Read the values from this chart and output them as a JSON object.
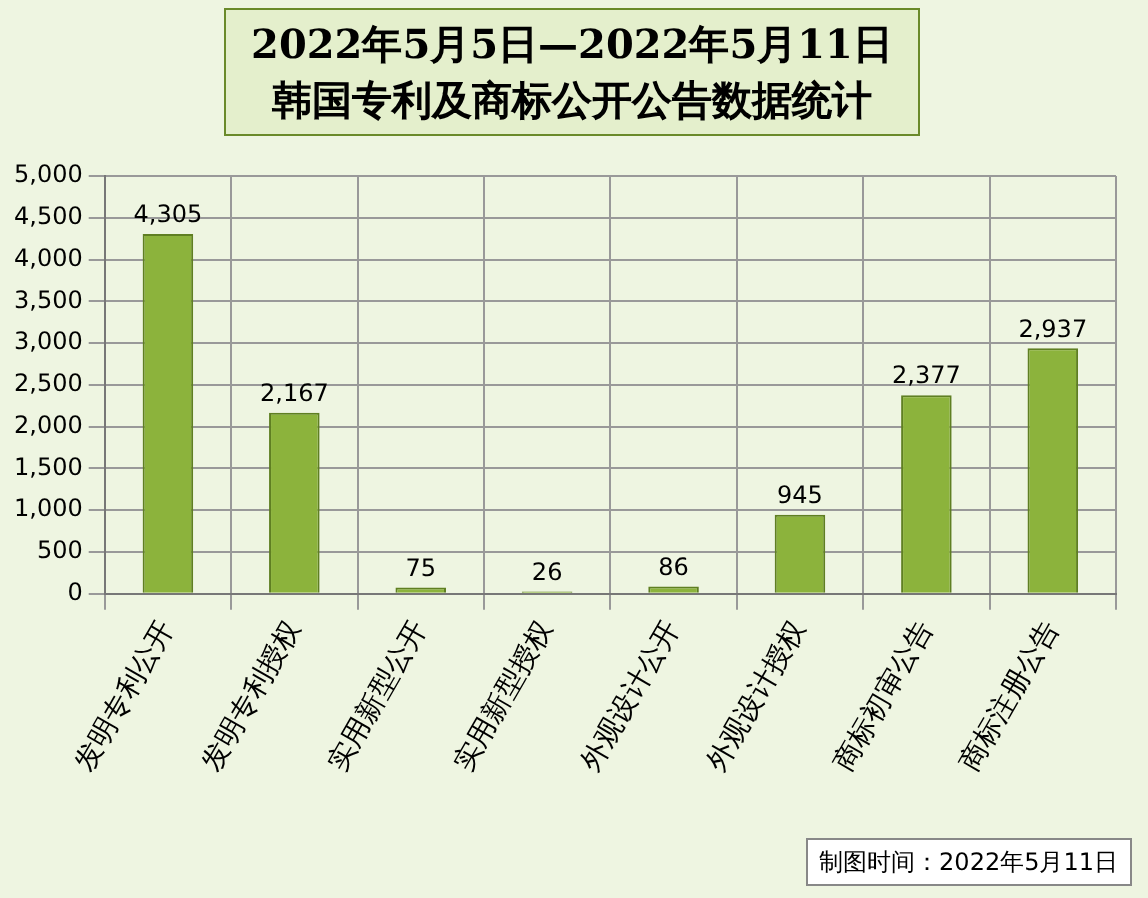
{
  "chart_data": {
    "type": "bar",
    "title": "2022年5月5日—2022年5月11日",
    "subtitle": "韩国专利及商标公开公告数据统计",
    "categories": [
      "发明专利公开",
      "发明专利授权",
      "实用新型公开",
      "实用新型授权",
      "外观设计公开",
      "外观设计授权",
      "商标初审公告",
      "商标注册公告"
    ],
    "values": [
      4305,
      2167,
      75,
      26,
      86,
      945,
      2377,
      2937
    ],
    "value_labels": [
      "4,305",
      "2,167",
      "75",
      "26",
      "86",
      "945",
      "2,377",
      "2,937"
    ],
    "color": "#8cb33c",
    "ylim": [
      0,
      5000
    ],
    "yticks": [
      {
        "value": 0,
        "label": "0"
      },
      {
        "value": 500,
        "label": "500"
      },
      {
        "value": 1000,
        "label": "1,000"
      },
      {
        "value": 1500,
        "label": "1,500"
      },
      {
        "value": 2000,
        "label": "2,000"
      },
      {
        "value": 2500,
        "label": "2,500"
      },
      {
        "value": 3000,
        "label": "3,000"
      },
      {
        "value": 3500,
        "label": "3,500"
      },
      {
        "value": 4000,
        "label": "4,000"
      },
      {
        "value": 4500,
        "label": "4,500"
      },
      {
        "value": 5000,
        "label": "5,000"
      }
    ],
    "grid": true,
    "legend": false,
    "annotations": [
      "制图时间：2022年5月11日"
    ]
  }
}
